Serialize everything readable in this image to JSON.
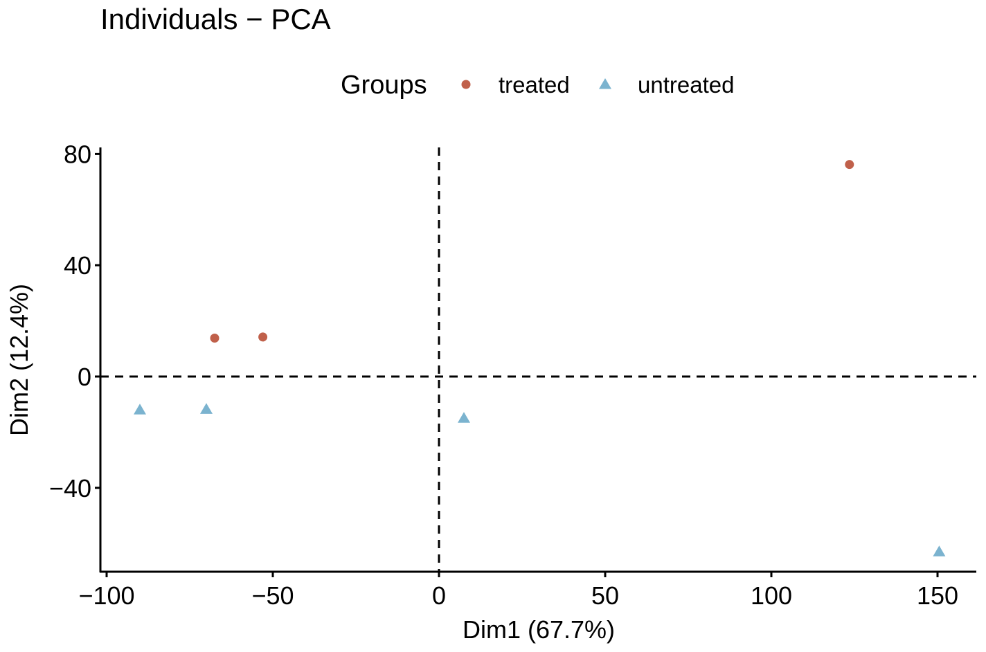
{
  "chart_data": {
    "type": "scatter",
    "title": "Individuals − PCA",
    "xlabel": "Dim1 (67.7%)",
    "ylabel": "Dim2 (12.4%)",
    "xlim": [
      -103,
      161
    ],
    "ylim": [
      -70,
      83
    ],
    "xticks": [
      {
        "value": -100,
        "label": "−100"
      },
      {
        "value": -50,
        "label": "−50"
      },
      {
        "value": 0,
        "label": "0"
      },
      {
        "value": 50,
        "label": "50"
      },
      {
        "value": 100,
        "label": "100"
      },
      {
        "value": 150,
        "label": "150"
      }
    ],
    "yticks": [
      {
        "value": -40,
        "label": "−40"
      },
      {
        "value": 0,
        "label": "0"
      },
      {
        "value": 40,
        "label": "40"
      },
      {
        "value": 80,
        "label": "80"
      }
    ],
    "reference_lines": {
      "x": 0,
      "y": 0,
      "style": "dashed"
    },
    "grid": false,
    "legend": {
      "title": "Groups",
      "position": "top"
    },
    "series": [
      {
        "name": "treated",
        "color": "#C0604A",
        "marker": "circle",
        "points": [
          {
            "x": -67.5,
            "y": 13.8
          },
          {
            "x": -53.0,
            "y": 14.2
          },
          {
            "x": 123.5,
            "y": 76.2
          }
        ]
      },
      {
        "name": "untreated",
        "color": "#7BB3CF",
        "marker": "triangle",
        "points": [
          {
            "x": -90.0,
            "y": -12.0
          },
          {
            "x": -70.0,
            "y": -11.8
          },
          {
            "x": 7.5,
            "y": -15.0
          },
          {
            "x": 150.5,
            "y": -63.0
          }
        ]
      }
    ]
  }
}
